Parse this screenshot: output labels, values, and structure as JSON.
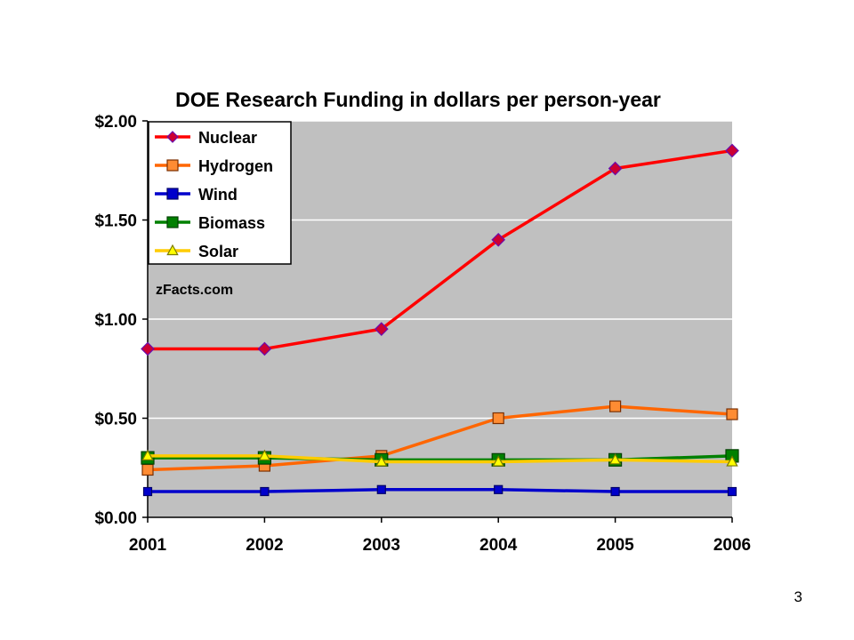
{
  "slide": {
    "page_number": "3"
  },
  "chart_data": {
    "type": "line",
    "title": "DOE Research Funding in dollars per person-year",
    "watermark": "zFacts.com",
    "xlabel": "",
    "ylabel": "",
    "categories": [
      "2001",
      "2002",
      "2003",
      "2004",
      "2005",
      "2006"
    ],
    "ylim": [
      0,
      2.0
    ],
    "yticks": [
      0,
      0.5,
      1.0,
      1.5,
      2.0
    ],
    "ytick_labels": [
      "$0.00",
      "$0.50",
      "$1.00",
      "$1.50",
      "$2.00"
    ],
    "grid": true,
    "plot_background": "#c0c0c0",
    "legend_position": "top-left",
    "series": [
      {
        "name": "Nuclear",
        "color": "#ff0000",
        "marker": "diamond",
        "marker_fill": "#cc0033",
        "values": [
          0.85,
          0.85,
          0.95,
          1.4,
          1.76,
          1.85
        ]
      },
      {
        "name": "Hydrogen",
        "color": "#ff6600",
        "marker": "square",
        "marker_fill": "#ff8c33",
        "values": [
          0.24,
          0.26,
          0.31,
          0.5,
          0.56,
          0.52
        ]
      },
      {
        "name": "Wind",
        "color": "#0000cc",
        "marker": "square",
        "marker_fill": "#0000cc",
        "values": [
          0.13,
          0.13,
          0.14,
          0.14,
          0.13,
          0.13
        ]
      },
      {
        "name": "Biomass",
        "color": "#008000",
        "marker": "square",
        "marker_fill": "#008000",
        "values": [
          0.3,
          0.3,
          0.29,
          0.29,
          0.29,
          0.31
        ]
      },
      {
        "name": "Solar",
        "color": "#ffcc00",
        "marker": "triangle",
        "marker_fill": "#ffff00",
        "values": [
          0.31,
          0.31,
          0.28,
          0.28,
          0.29,
          0.28
        ]
      }
    ]
  }
}
